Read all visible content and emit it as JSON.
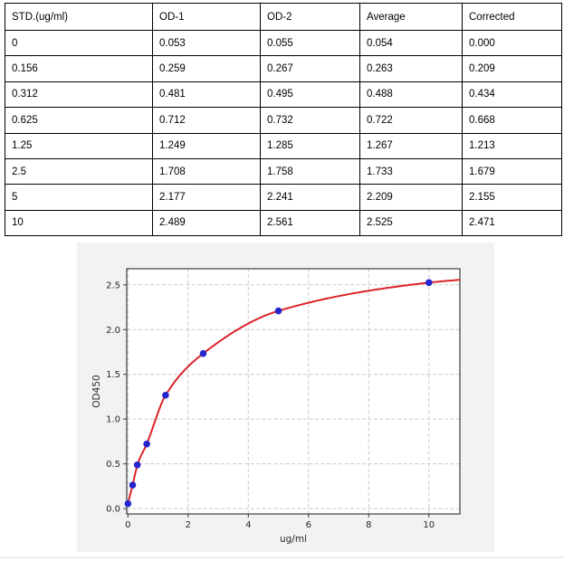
{
  "table": {
    "columns": [
      "STD.(ug/ml)",
      "OD-1",
      "OD-2",
      "Average",
      "Corrected"
    ],
    "rows": [
      [
        "0",
        "0.053",
        "0.055",
        "0.054",
        "0.000"
      ],
      [
        "0.156",
        "0.259",
        "0.267",
        "0.263",
        "0.209"
      ],
      [
        "0.312",
        "0.481",
        "0.495",
        "0.488",
        "0.434"
      ],
      [
        "0.625",
        "0.712",
        "0.732",
        "0.722",
        "0.668"
      ],
      [
        "1.25",
        "1.249",
        "1.285",
        "1.267",
        "1.213"
      ],
      [
        "2.5",
        "1.708",
        "1.758",
        "1.733",
        "1.679"
      ],
      [
        "5",
        "2.177",
        "2.241",
        "2.209",
        "2.155"
      ],
      [
        "10",
        "2.489",
        "2.561",
        "2.525",
        "2.471"
      ]
    ]
  },
  "chart_data": {
    "type": "scatter",
    "title": "",
    "xlabel": "ug/ml",
    "ylabel": "OD450",
    "points": {
      "x": [
        0,
        0.156,
        0.312,
        0.625,
        1.25,
        2.5,
        5,
        10
      ],
      "y": [
        0.054,
        0.263,
        0.488,
        0.722,
        1.267,
        1.733,
        2.209,
        2.525
      ]
    },
    "fit_curve": {
      "name": "4PL fit",
      "x": [
        0,
        0.156,
        0.312,
        0.625,
        1.25,
        2.5,
        5,
        10,
        11.03
      ],
      "y": [
        0.054,
        0.263,
        0.488,
        0.722,
        1.267,
        1.733,
        2.209,
        2.525,
        2.557
      ]
    },
    "xlim": [
      -0.04,
      11.03
    ],
    "ylim": [
      -0.06,
      2.68
    ],
    "xticks": [
      0,
      2,
      4,
      6,
      8,
      10
    ],
    "xtick_labels": [
      "0",
      "2",
      "4",
      "6",
      "8",
      "10"
    ],
    "yticks": [
      0,
      0.5,
      1,
      1.5,
      2,
      2.5
    ],
    "ytick_labels": [
      "0.0",
      "0.5",
      "1.0",
      "1.5",
      "2.0",
      "2.5"
    ],
    "grid": true,
    "legend": "none",
    "colors": {
      "curve": "#dc2328",
      "points": "#2525cd",
      "grid": "#c9c9c9",
      "spine": "#3c3c3c",
      "figure_bg": "#f2f2f2",
      "plot_bg": "#ffffff",
      "tick_text": "#262626"
    }
  }
}
